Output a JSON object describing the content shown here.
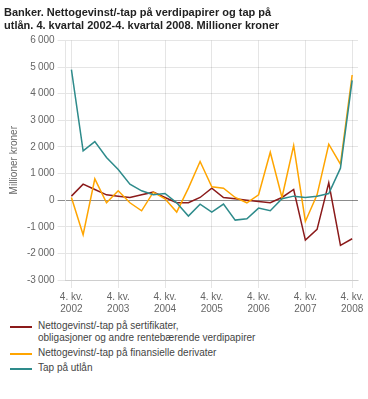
{
  "chart_data": {
    "type": "line",
    "title": "Banker. Nettogevinst/-tap på verdipapirer og tap på\nutlån. 4. kvartal 2002-4. kvartal 2008. Millioner kroner",
    "ylabel": "Millioner kroner",
    "categories": [
      "4. kv.\n2002",
      null,
      null,
      null,
      "4. kv.\n2003",
      null,
      null,
      null,
      "4. kv.\n2004",
      null,
      null,
      null,
      "4. kv.\n2005",
      null,
      null,
      null,
      "4. kv.\n2006",
      null,
      null,
      null,
      "4. kv.\n2007",
      null,
      null,
      null,
      "4. kv.\n2008"
    ],
    "series": [
      {
        "name": "Tap på utlån",
        "color": "#2E8B8B",
        "values": [
          4900,
          1850,
          2200,
          1600,
          1150,
          600,
          350,
          200,
          250,
          -100,
          -600,
          -150,
          -450,
          -150,
          -750,
          -700,
          -300,
          -400,
          50,
          150,
          100,
          150,
          250,
          1200,
          4500
        ]
      },
      {
        "name": "Nettogevinst/-tap på finansielle derivater",
        "color": "#FFA500",
        "values": [
          100,
          -1300,
          800,
          -100,
          350,
          -100,
          -400,
          300,
          50,
          -450,
          450,
          1450,
          500,
          450,
          100,
          -100,
          200,
          1800,
          100,
          2050,
          -800,
          200,
          2100,
          1350,
          4700
        ]
      },
      {
        "name": "Nettogevinst/-tap på sertifikater,\nobligasjoner og andre rentebærende verdipapirer",
        "color": "#8B1A1A",
        "values": [
          150,
          600,
          400,
          200,
          150,
          100,
          200,
          300,
          100,
          -100,
          -100,
          100,
          450,
          100,
          50,
          0,
          -50,
          -100,
          100,
          400,
          -1500,
          -1100,
          650,
          -1700,
          -1450
        ]
      }
    ],
    "ylim": [
      -3000,
      6000
    ],
    "yticks": [
      {
        "value": -3000,
        "label": "-3 000"
      },
      {
        "value": -2000,
        "label": "-2 000"
      },
      {
        "value": -1000,
        "label": "-1 000"
      },
      0,
      {
        "value": 1000,
        "label": "1 000"
      },
      {
        "value": 2000,
        "label": "2 000"
      },
      {
        "value": 3000,
        "label": "3 000"
      },
      {
        "value": 4000,
        "label": "4 000"
      },
      {
        "value": 5000,
        "label": "5 000"
      },
      {
        "value": 6000,
        "label": "6 000"
      }
    ],
    "grid": true,
    "legend": "bottom"
  }
}
